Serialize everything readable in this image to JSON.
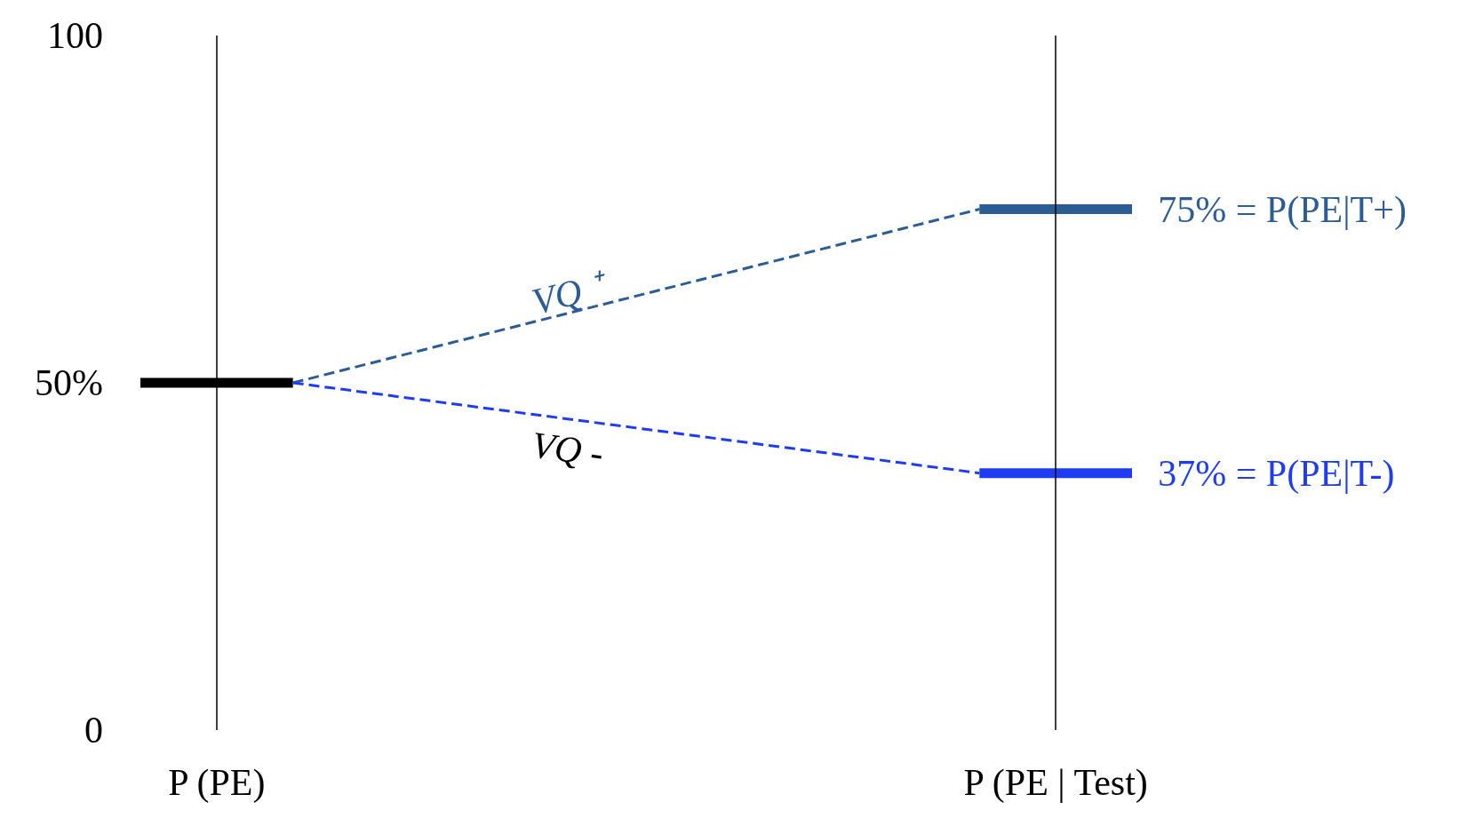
{
  "chart_data": {
    "type": "line",
    "categories": [
      null,
      "P (PE)",
      null,
      null,
      null,
      null,
      null,
      null,
      null,
      null,
      null,
      null,
      "P (PE | Test)",
      null
    ],
    "ylim": [
      0,
      100
    ],
    "yticks": [
      0,
      {
        "value": 50,
        "label": "50%"
      },
      100
    ],
    "ref_lines": [
      {
        "axis": "x",
        "value": "P (PE)",
        "color": "#000000"
      },
      {
        "axis": "x",
        "value": "P (PE | Test)",
        "color": "#000000"
      }
    ],
    "line_style": "dashed",
    "legend": false,
    "series": [
      {
        "name": "VQ ⁺",
        "color": "#2b5d94",
        "values": [
          null,
          null,
          50,
          null,
          null,
          null,
          null,
          null,
          null,
          null,
          null,
          75,
          null,
          null
        ]
      },
      {
        "name": "VQ -",
        "color": "#1f3cf5",
        "values": [
          null,
          null,
          50,
          null,
          null,
          null,
          null,
          null,
          null,
          null,
          null,
          37,
          null,
          null
        ]
      },
      {
        "color": "#000000",
        "line_style": "solid",
        "values": [
          50,
          50,
          50,
          null,
          null,
          null,
          null,
          null,
          null,
          null,
          null,
          null,
          null,
          null
        ]
      },
      {
        "color": "#2b5d94",
        "line_style": "solid",
        "values": [
          null,
          null,
          null,
          null,
          null,
          null,
          null,
          null,
          null,
          null,
          null,
          75,
          75,
          75
        ]
      },
      {
        "color": "#1f3cf5",
        "line_style": "solid",
        "values": [
          null,
          null,
          null,
          null,
          null,
          null,
          null,
          null,
          null,
          null,
          null,
          37,
          37,
          37
        ]
      }
    ],
    "annotations": [
      {
        "text": "75% = P(PE|T+)",
        "x": "P (PE | Test)",
        "y": 75
      },
      {
        "text": "37% = P(PE|T-)",
        "x": "P (PE | Test)",
        "y": 37
      }
    ]
  }
}
